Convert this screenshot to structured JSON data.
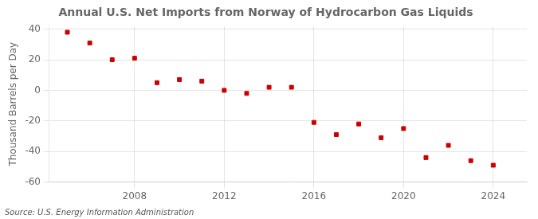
{
  "chart_data": {
    "type": "scatter",
    "title": "Annual U.S. Net Imports from Norway of Hydrocarbon Gas Liquids",
    "ylabel": "Thousand Barrels per Day",
    "source": "Source: U.S. Energy Information Administration",
    "x": [
      2005,
      2006,
      2007,
      2008,
      2009,
      2010,
      2011,
      2012,
      2013,
      2014,
      2015,
      2016,
      2017,
      2018,
      2019,
      2020,
      2021,
      2022,
      2023,
      2024
    ],
    "values": [
      38,
      31,
      20,
      21,
      5,
      7,
      6,
      0,
      -2,
      2,
      2,
      -21,
      -29,
      -22,
      -31,
      -25,
      -44,
      -36,
      -46,
      -49
    ],
    "color": "#CC0000",
    "marker": "square",
    "xlim": [
      2004.2,
      2025.5
    ],
    "xticks": [
      2008,
      2012,
      2016,
      2020,
      2024
    ],
    "ylim": [
      -60,
      42
    ],
    "yticks": [
      -60,
      -40,
      -20,
      0,
      20,
      40
    ],
    "grid": true
  }
}
